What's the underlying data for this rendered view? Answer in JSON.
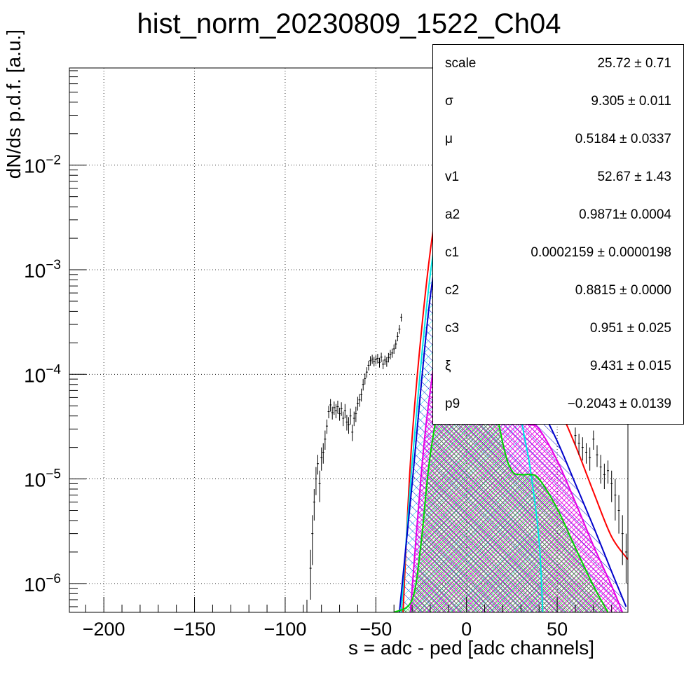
{
  "title": "hist_norm_20230809_1522_Ch04",
  "chart_data": {
    "type": "scatter",
    "title": "hist_norm_20230809_1522_Ch04",
    "xlabel": "s = adc - ped [adc channels]",
    "ylabel": "dN/ds p.d.f. [a.u.]",
    "xlim": [
      -219,
      89
    ],
    "ylim": [
      5.3e-07,
      0.085
    ],
    "y_scale": "log",
    "grid": true,
    "x_ticks": [
      -200,
      -150,
      -100,
      -50,
      0,
      50
    ],
    "x_tick_labels": [
      "−200",
      "−150",
      "−100",
      "−50",
      "0",
      "50"
    ],
    "y_ticks": [
      1e-06,
      1e-05,
      0.0001,
      0.001,
      0.01
    ],
    "y_tick_labels": [
      {
        "base": "10",
        "exp": "−6"
      },
      {
        "base": "10",
        "exp": "−5"
      },
      {
        "base": "10",
        "exp": "−4"
      },
      {
        "base": "10",
        "exp": "−3"
      },
      {
        "base": "10",
        "exp": "−2"
      }
    ],
    "data_points": [
      {
        "x": -88,
        "y": 2e-07,
        "e": 5e-07
      },
      {
        "x": -86,
        "y": 1.4e-06,
        "e": 7e-07
      },
      {
        "x": -85,
        "y": 3e-06,
        "e": 1.5e-06
      },
      {
        "x": -84,
        "y": 6e-06,
        "e": 2e-06
      },
      {
        "x": -83,
        "y": 1e-05,
        "e": 3e-06
      },
      {
        "x": -82,
        "y": 1.4e-05,
        "e": 3e-06
      },
      {
        "x": -81,
        "y": 9e-06,
        "e": 3e-06
      },
      {
        "x": -80,
        "y": 1.6e-05,
        "e": 4e-06
      },
      {
        "x": -79,
        "y": 1.8e-05,
        "e": 4e-06
      },
      {
        "x": -78,
        "y": 2.4e-05,
        "e": 5e-06
      },
      {
        "x": -77,
        "y": 3.2e-05,
        "e": 5e-06
      },
      {
        "x": -76,
        "y": 4.4e-05,
        "e": 6e-06
      },
      {
        "x": -75,
        "y": 5.1e-05,
        "e": 7e-06
      },
      {
        "x": -74,
        "y": 4.3e-05,
        "e": 6e-06
      },
      {
        "x": -73,
        "y": 4.8e-05,
        "e": 7e-06
      },
      {
        "x": -72,
        "y": 4.5e-05,
        "e": 7e-06
      },
      {
        "x": -71,
        "y": 4.9e-05,
        "e": 7e-06
      },
      {
        "x": -70,
        "y": 4.2e-05,
        "e": 6e-06
      },
      {
        "x": -69,
        "y": 4.7e-05,
        "e": 7e-06
      },
      {
        "x": -68,
        "y": 3.8e-05,
        "e": 6e-06
      },
      {
        "x": -67,
        "y": 4.5e-05,
        "e": 7e-06
      },
      {
        "x": -66,
        "y": 3.5e-05,
        "e": 6e-06
      },
      {
        "x": -65,
        "y": 3.3e-05,
        "e": 6e-06
      },
      {
        "x": -64,
        "y": 4e-05,
        "e": 7e-06
      },
      {
        "x": -63,
        "y": 2.8e-05,
        "e": 5e-06
      },
      {
        "x": -62,
        "y": 3.8e-05,
        "e": 6e-06
      },
      {
        "x": -61,
        "y": 4.2e-05,
        "e": 7e-06
      },
      {
        "x": -60,
        "y": 5.3e-05,
        "e": 8e-06
      },
      {
        "x": -59,
        "y": 5.7e-05,
        "e": 8e-06
      },
      {
        "x": -58,
        "y": 6.4e-05,
        "e": 9e-06
      },
      {
        "x": -57,
        "y": 8e-05,
        "e": 1e-05
      },
      {
        "x": -56,
        "y": 9.1e-05,
        "e": 1.1e-05
      },
      {
        "x": -55,
        "y": 0.000105,
        "e": 1.2e-05
      },
      {
        "x": -54,
        "y": 0.000122,
        "e": 1.3e-05
      },
      {
        "x": -53,
        "y": 0.000135,
        "e": 1.4e-05
      },
      {
        "x": -52,
        "y": 0.00014,
        "e": 1.4e-05
      },
      {
        "x": -51,
        "y": 0.000133,
        "e": 1.4e-05
      },
      {
        "x": -50,
        "y": 0.000138,
        "e": 1.4e-05
      },
      {
        "x": -49,
        "y": 0.000142,
        "e": 1.5e-05
      },
      {
        "x": -48,
        "y": 0.00013,
        "e": 1.4e-05
      },
      {
        "x": -47,
        "y": 0.000146,
        "e": 1.5e-05
      },
      {
        "x": -46,
        "y": 0.000125,
        "e": 1.3e-05
      },
      {
        "x": -45,
        "y": 0.000137,
        "e": 1.4e-05
      },
      {
        "x": -44,
        "y": 0.000132,
        "e": 1.4e-05
      },
      {
        "x": -43,
        "y": 0.000145,
        "e": 1.5e-05
      },
      {
        "x": -42,
        "y": 0.000155,
        "e": 1.6e-05
      },
      {
        "x": -41,
        "y": 0.00016,
        "e": 1.6e-05
      },
      {
        "x": -40,
        "y": 0.000175,
        "e": 1.8e-05
      },
      {
        "x": -39,
        "y": 0.000195,
        "e": 2e-05
      },
      {
        "x": -38,
        "y": 0.00023,
        "e": 2.3e-05
      },
      {
        "x": -37,
        "y": 0.00027,
        "e": 2.6e-05
      },
      {
        "x": -36,
        "y": 0.00035,
        "e": 3e-05
      },
      {
        "x": 60,
        "y": 2.6e-05,
        "e": 5e-06
      },
      {
        "x": 62,
        "y": 2.2e-05,
        "e": 5e-06
      },
      {
        "x": 64,
        "y": 2e-05,
        "e": 5e-06
      },
      {
        "x": 66,
        "y": 1.8e-05,
        "e": 4e-06
      },
      {
        "x": 68,
        "y": 1.6e-05,
        "e": 4e-06
      },
      {
        "x": 70,
        "y": 2.4e-05,
        "e": 5e-06
      },
      {
        "x": 72,
        "y": 1.7e-05,
        "e": 4e-06
      },
      {
        "x": 74,
        "y": 1.3e-05,
        "e": 4e-06
      },
      {
        "x": 76,
        "y": 1.1e-05,
        "e": 3e-06
      },
      {
        "x": 78,
        "y": 1.2e-05,
        "e": 3e-06
      },
      {
        "x": 80,
        "y": 9e-06,
        "e": 3e-06
      },
      {
        "x": 82,
        "y": 7e-06,
        "e": 3e-06
      },
      {
        "x": 84,
        "y": 5e-06,
        "e": 2e-06
      },
      {
        "x": 86,
        "y": 3e-06,
        "e": 1.5e-06
      },
      {
        "x": 88,
        "y": 2e-06,
        "e": 1e-06
      }
    ],
    "series": [
      {
        "color": "#ff0000",
        "fill": "none",
        "points": [
          [
            -35,
            5.3e-07
          ],
          [
            -30,
            2.5e-05
          ],
          [
            -20,
            0.0015
          ],
          [
            -10,
            0.0135
          ],
          [
            -5,
            0.03
          ],
          [
            0,
            0.041
          ],
          [
            5,
            0.031
          ],
          [
            10,
            0.0135
          ],
          [
            20,
            0.0011
          ],
          [
            25,
            0.00035
          ],
          [
            30,
            0.00016
          ],
          [
            35,
            0.00012
          ],
          [
            40,
            0.00011
          ],
          [
            50,
            5.2e-05
          ],
          [
            60,
            2.1e-05
          ],
          [
            70,
            7.5e-06
          ],
          [
            80,
            2.8e-06
          ],
          [
            89,
            1.7e-06
          ]
        ]
      },
      {
        "color": "#00e5e5",
        "fill": "cyan-hatch",
        "points": [
          [
            -36,
            5.3e-07
          ],
          [
            -30,
            1.4e-05
          ],
          [
            -20,
            0.0009
          ],
          [
            -10,
            0.008
          ],
          [
            -5,
            0.018
          ],
          [
            0,
            0.024
          ],
          [
            5,
            0.018
          ],
          [
            10,
            0.008
          ],
          [
            20,
            0.00075
          ],
          [
            30,
            4e-05
          ],
          [
            35,
            1.3e-05
          ],
          [
            40,
            2.6e-06
          ],
          [
            42,
            5.3e-07
          ]
        ]
      },
      {
        "color": "#0000cc",
        "fill": "blue-hatch",
        "points": [
          [
            -37,
            5.3e-07
          ],
          [
            -30,
            9e-06
          ],
          [
            -20,
            0.00055
          ],
          [
            -10,
            0.005
          ],
          [
            -5,
            0.0105
          ],
          [
            0,
            0.0125
          ],
          [
            5,
            0.0105
          ],
          [
            10,
            0.005
          ],
          [
            20,
            0.00045
          ],
          [
            25,
            0.00013
          ],
          [
            30,
            6.5e-05
          ],
          [
            35,
            5.8e-05
          ],
          [
            40,
            5e-05
          ],
          [
            50,
            2.3e-05
          ],
          [
            60,
            9e-06
          ],
          [
            70,
            3.5e-06
          ],
          [
            80,
            1.3e-06
          ],
          [
            88,
            6e-07
          ]
        ]
      },
      {
        "color": "#e600e6",
        "fill": "magenta-hatch",
        "points": [
          [
            -31,
            5.3e-07
          ],
          [
            -25,
            1.1e-05
          ],
          [
            -20,
            7e-05
          ],
          [
            -10,
            0.00105
          ],
          [
            -5,
            0.0023
          ],
          [
            0,
            0.0031
          ],
          [
            5,
            0.0024
          ],
          [
            10,
            0.00105
          ],
          [
            20,
            0.00011
          ],
          [
            25,
            5e-05
          ],
          [
            30,
            3.5e-05
          ],
          [
            35,
            3.3e-05
          ],
          [
            40,
            3e-05
          ],
          [
            50,
            1.5e-05
          ],
          [
            60,
            6e-06
          ],
          [
            70,
            2.3e-06
          ],
          [
            80,
            9.5e-07
          ],
          [
            86,
            5.3e-07
          ]
        ]
      },
      {
        "color": "#00d400",
        "fill": "green-hatch",
        "points": [
          [
            -40,
            5.3e-07
          ],
          [
            -30,
            7e-07
          ],
          [
            -25,
            2.5e-06
          ],
          [
            -20,
            1.7e-05
          ],
          [
            -10,
            0.00017
          ],
          [
            -5,
            0.0004
          ],
          [
            0,
            0.00053
          ],
          [
            5,
            0.0004
          ],
          [
            10,
            0.00017
          ],
          [
            20,
            2.2e-05
          ],
          [
            25,
            1.2e-05
          ],
          [
            30,
            1.1e-05
          ],
          [
            35,
            1.1e-05
          ],
          [
            40,
            1e-05
          ],
          [
            50,
            5.2e-06
          ],
          [
            60,
            2.2e-06
          ],
          [
            70,
            9.5e-07
          ],
          [
            78,
            5.3e-07
          ]
        ]
      }
    ]
  },
  "stats": [
    {
      "name": "scale",
      "value": "25.72 ± 0.71"
    },
    {
      "name": "σ",
      "value": "9.305 ± 0.011"
    },
    {
      "name": "μ",
      "value": "0.5184 ± 0.0337"
    },
    {
      "name": "v1",
      "value": "52.67 ± 1.43"
    },
    {
      "name": "a2",
      "value": "0.9871± 0.0004"
    },
    {
      "name": "c1",
      "value": "0.0002159 ± 0.0000198"
    },
    {
      "name": "c2",
      "value": "0.8815 ± 0.0000"
    },
    {
      "name": "c3",
      "value": "0.951 ± 0.025"
    },
    {
      "name": "ξ",
      "value": "9.431 ± 0.015"
    },
    {
      "name": "p9",
      "value": "−0.2043 ± 0.0139"
    }
  ]
}
